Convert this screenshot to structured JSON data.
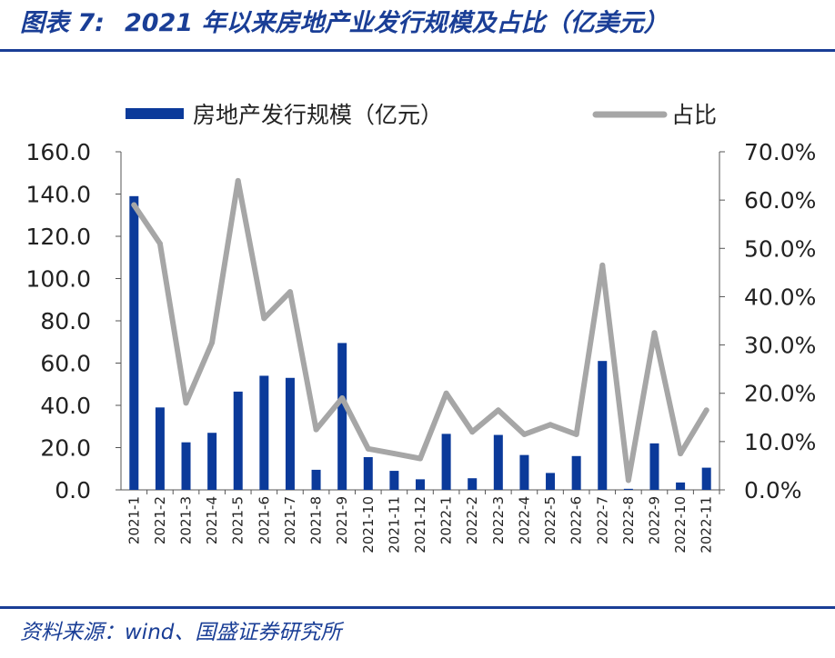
{
  "header": {
    "figure_label": "图表 7:",
    "title": "2021 年以来房地产业发行规模及占比（亿美元）"
  },
  "footer": {
    "source": "资料来源：wind、国盛证券研究所"
  },
  "colors": {
    "brand": "#1a3e96",
    "bar": "#0b3a9a",
    "line": "#a6a6a6"
  },
  "chart_data": {
    "type": "bar",
    "title": "2021 年以来房地产业发行规模及占比（亿美元）",
    "categories": [
      "2021-1",
      "2021-2",
      "2021-3",
      "2021-4",
      "2021-5",
      "2021-6",
      "2021-7",
      "2021-8",
      "2021-9",
      "2021-10",
      "2021-11",
      "2021-12",
      "2022-1",
      "2022-2",
      "2022-3",
      "2022-4",
      "2022-5",
      "2022-6",
      "2022-7",
      "2022-8",
      "2022-9",
      "2022-10",
      "2022-11"
    ],
    "series": [
      {
        "name": "房地产发行规模（亿元）",
        "type": "bar",
        "axis": "left",
        "values": [
          139,
          39,
          22.5,
          27,
          46.5,
          54,
          53,
          9.5,
          69.5,
          15.5,
          9,
          5,
          26.5,
          5.5,
          26,
          16.5,
          8,
          16,
          61,
          0.5,
          22,
          3.5,
          10.5
        ]
      },
      {
        "name": "占比",
        "type": "line",
        "axis": "right",
        "values": [
          59.0,
          51.0,
          18.0,
          30.5,
          64.0,
          35.5,
          41.0,
          12.5,
          19.0,
          8.5,
          7.5,
          6.5,
          20.0,
          12.0,
          16.5,
          11.5,
          13.5,
          11.5,
          46.5,
          2.0,
          32.5,
          7.5,
          16.5
        ]
      }
    ],
    "ylim_left": [
      0,
      160
    ],
    "yticks_left": [
      "0.0",
      "20.0",
      "40.0",
      "60.0",
      "80.0",
      "100.0",
      "120.0",
      "140.0",
      "160.0"
    ],
    "ylim_right": [
      0,
      70
    ],
    "yticks_right": [
      "0.0%",
      "10.0%",
      "20.0%",
      "30.0%",
      "40.0%",
      "50.0%",
      "60.0%",
      "70.0%"
    ],
    "legend": [
      "房地产发行规模（亿元）",
      "占比"
    ],
    "legend_position": "top",
    "grid": false
  }
}
